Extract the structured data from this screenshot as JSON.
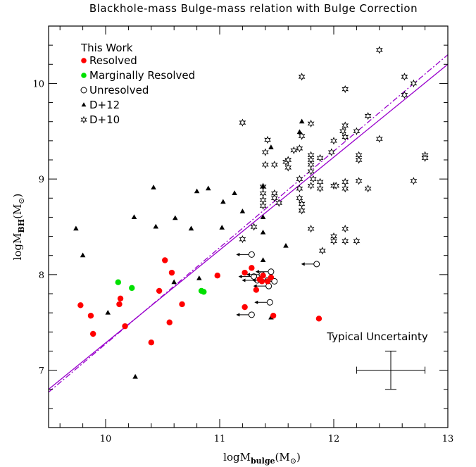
{
  "chart_data": {
    "type": "scatter",
    "title": "Blackhole-mass Bulge-mass relation with Bulge Correction",
    "xlabel_main": "logM",
    "xlabel_sub": "bulge",
    "xlabel_unit": "(M",
    "xlabel_close": ")",
    "ylabel_main": "logM",
    "ylabel_sub": "BH",
    "ylabel_unit": "(M",
    "ylabel_close": ")",
    "xlim": [
      9.5,
      13
    ],
    "ylim": [
      6.4,
      10.6
    ],
    "x_ticks": [
      "10",
      "11",
      "12",
      "13"
    ],
    "y_ticks": [
      "7",
      "8",
      "9",
      "10"
    ],
    "legend_placement": "top-left",
    "legend_title": "This Work",
    "colors": {
      "resolved": "#ff0000",
      "marginal": "#00e000",
      "fit_line": "#9900cc"
    },
    "series": [
      {
        "name": "Resolved",
        "marker": "filled-circle",
        "color": "#ff0000",
        "points": [
          [
            9.78,
            7.68
          ],
          [
            9.87,
            7.57
          ],
          [
            9.89,
            7.38
          ],
          [
            10.12,
            7.69
          ],
          [
            10.13,
            7.75
          ],
          [
            10.17,
            7.46
          ],
          [
            10.4,
            7.29
          ],
          [
            10.47,
            7.83
          ],
          [
            10.52,
            8.15
          ],
          [
            10.56,
            7.5
          ],
          [
            10.58,
            8.02
          ],
          [
            10.67,
            7.69
          ],
          [
            10.98,
            7.99
          ],
          [
            11.22,
            8.02
          ],
          [
            11.28,
            8.07
          ],
          [
            11.32,
            7.84
          ],
          [
            11.35,
            7.95
          ],
          [
            11.37,
            7.93
          ],
          [
            11.38,
            7.99
          ],
          [
            11.42,
            7.93
          ],
          [
            11.22,
            7.66
          ],
          [
            11.45,
            7.97
          ],
          [
            11.47,
            7.57
          ],
          [
            11.87,
            7.54
          ]
        ]
      },
      {
        "name": "Marginally Resolved",
        "marker": "filled-circle",
        "color": "#00e000",
        "points": [
          [
            10.11,
            7.92
          ],
          [
            10.23,
            7.86
          ],
          [
            10.84,
            7.83
          ],
          [
            10.86,
            7.82
          ]
        ]
      },
      {
        "name": "Unresolved",
        "marker": "open-circle-upper-limit",
        "color": "#000000",
        "points": [
          [
            11.28,
            8.21
          ],
          [
            11.3,
            7.98
          ],
          [
            11.33,
            7.94
          ],
          [
            11.37,
            8.0
          ],
          [
            11.42,
            7.94
          ],
          [
            11.45,
            8.03
          ],
          [
            11.48,
            7.93
          ],
          [
            11.43,
            7.88
          ],
          [
            11.44,
            7.71
          ],
          [
            11.28,
            7.58
          ],
          [
            11.85,
            8.11
          ]
        ]
      },
      {
        "name": "D+12",
        "marker": "filled-triangle",
        "color": "#000000",
        "points": [
          [
            9.74,
            8.48
          ],
          [
            9.8,
            8.2
          ],
          [
            10.02,
            7.6
          ],
          [
            10.25,
            8.6
          ],
          [
            10.26,
            6.93
          ],
          [
            10.42,
            8.91
          ],
          [
            10.44,
            8.5
          ],
          [
            10.61,
            8.59
          ],
          [
            10.6,
            7.92
          ],
          [
            10.75,
            8.48
          ],
          [
            10.8,
            8.87
          ],
          [
            10.82,
            7.96
          ],
          [
            10.9,
            8.9
          ],
          [
            11.02,
            8.49
          ],
          [
            11.03,
            8.76
          ],
          [
            11.13,
            8.85
          ],
          [
            11.2,
            8.66
          ],
          [
            11.38,
            8.44
          ],
          [
            11.38,
            8.15
          ],
          [
            11.38,
            8.6
          ],
          [
            11.45,
            9.33
          ],
          [
            11.45,
            7.55
          ],
          [
            11.58,
            8.3
          ],
          [
            11.7,
            9.49
          ],
          [
            11.72,
            9.6
          ],
          [
            11.38,
            8.92
          ]
        ]
      },
      {
        "name": "D+10",
        "marker": "open-star",
        "color": "#000000",
        "points": [
          [
            11.2,
            9.59
          ],
          [
            11.3,
            8.5
          ],
          [
            11.2,
            8.37
          ],
          [
            11.4,
            9.28
          ],
          [
            11.4,
            9.15
          ],
          [
            11.38,
            8.92
          ],
          [
            11.38,
            8.85
          ],
          [
            11.38,
            8.78
          ],
          [
            11.38,
            8.72
          ],
          [
            11.48,
            9.15
          ],
          [
            11.48,
            8.85
          ],
          [
            11.48,
            8.8
          ],
          [
            11.52,
            8.75
          ],
          [
            11.58,
            9.18
          ],
          [
            11.6,
            9.12
          ],
          [
            11.6,
            9.2
          ],
          [
            11.65,
            9.3
          ],
          [
            11.7,
            9.32
          ],
          [
            11.7,
            9.0
          ],
          [
            11.7,
            8.9
          ],
          [
            11.72,
            8.74
          ],
          [
            11.72,
            8.67
          ],
          [
            11.7,
            8.8
          ],
          [
            11.72,
            9.45
          ],
          [
            11.72,
            10.07
          ],
          [
            11.8,
            9.58
          ],
          [
            11.8,
            9.25
          ],
          [
            11.8,
            9.2
          ],
          [
            11.8,
            9.15
          ],
          [
            11.8,
            9.08
          ],
          [
            11.82,
            9.0
          ],
          [
            11.8,
            8.93
          ],
          [
            11.8,
            8.48
          ],
          [
            11.88,
            9.22
          ],
          [
            11.88,
            8.97
          ],
          [
            11.88,
            8.9
          ],
          [
            11.9,
            8.25
          ],
          [
            11.98,
            9.28
          ],
          [
            12.0,
            9.4
          ],
          [
            12.0,
            8.93
          ],
          [
            12.02,
            8.93
          ],
          [
            12.0,
            8.4
          ],
          [
            12.0,
            8.35
          ],
          [
            12.08,
            9.5
          ],
          [
            12.1,
            9.56
          ],
          [
            12.1,
            9.44
          ],
          [
            12.1,
            8.97
          ],
          [
            12.1,
            8.9
          ],
          [
            12.1,
            8.48
          ],
          [
            12.1,
            8.35
          ],
          [
            12.1,
            9.94
          ],
          [
            12.2,
            9.5
          ],
          [
            12.22,
            9.25
          ],
          [
            12.22,
            9.2
          ],
          [
            12.22,
            8.98
          ],
          [
            12.2,
            8.35
          ],
          [
            12.3,
            9.66
          ],
          [
            12.3,
            8.9
          ],
          [
            12.4,
            10.35
          ],
          [
            12.4,
            9.42
          ],
          [
            12.62,
            10.07
          ],
          [
            12.62,
            9.88
          ],
          [
            12.7,
            10.0
          ],
          [
            12.7,
            8.98
          ],
          [
            12.8,
            9.25
          ],
          [
            12.8,
            9.22
          ],
          [
            11.42,
            9.41
          ]
        ]
      }
    ],
    "fits": [
      {
        "style": "solid",
        "color": "#9900cc",
        "x": [
          9.5,
          13
        ],
        "y": [
          6.8,
          10.2
        ]
      },
      {
        "style": "dash-dot",
        "color": "#9900cc",
        "x": [
          9.5,
          13
        ],
        "y": [
          6.77,
          10.3
        ]
      }
    ],
    "uncertainty": {
      "label": "Typical Uncertainty",
      "x": 12.5,
      "y": 7.0,
      "dx": 0.3,
      "dy": 0.2
    }
  }
}
